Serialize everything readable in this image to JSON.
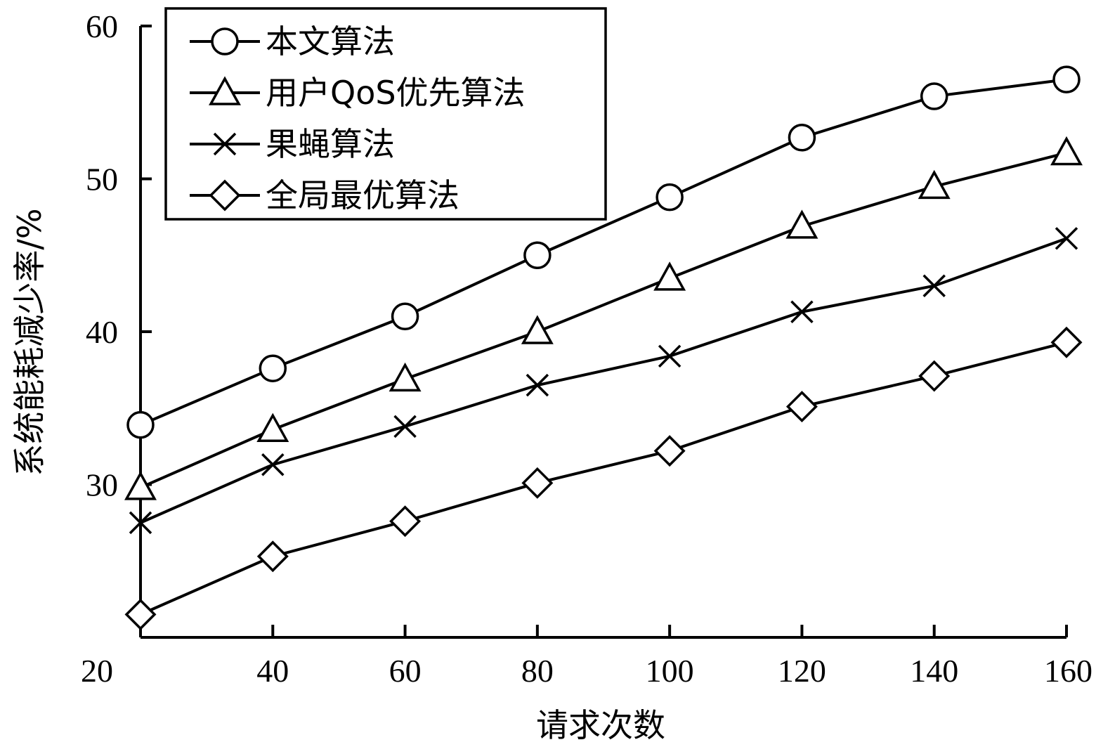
{
  "chart_data": {
    "type": "line",
    "title": "",
    "xlabel": "请求次数",
    "ylabel": "系统能耗减少率/%",
    "xlim": [
      20,
      160
    ],
    "ylim": [
      20,
      60
    ],
    "x_ticks": [
      20,
      40,
      60,
      80,
      100,
      120,
      140,
      160
    ],
    "y_ticks": [
      30,
      40,
      50,
      60
    ],
    "legend_position": "top-left",
    "x": [
      20,
      40,
      60,
      80,
      100,
      120,
      140,
      160
    ],
    "series": [
      {
        "name": "本文算法",
        "marker": "circle",
        "values": [
          33.9,
          37.6,
          41.0,
          45.0,
          48.8,
          52.7,
          55.4,
          56.5
        ]
      },
      {
        "name": "用户QoS优先算法",
        "marker": "triangle",
        "values": [
          29.8,
          33.6,
          36.9,
          40.0,
          43.5,
          46.9,
          49.5,
          51.7
        ]
      },
      {
        "name": "果蝇算法",
        "marker": "x",
        "values": [
          27.5,
          31.3,
          33.8,
          36.5,
          38.4,
          41.3,
          43.0,
          46.1
        ]
      },
      {
        "name": "全局最优算法",
        "marker": "diamond",
        "values": [
          21.5,
          25.3,
          27.6,
          30.1,
          32.2,
          35.1,
          37.1,
          39.3
        ]
      }
    ]
  }
}
